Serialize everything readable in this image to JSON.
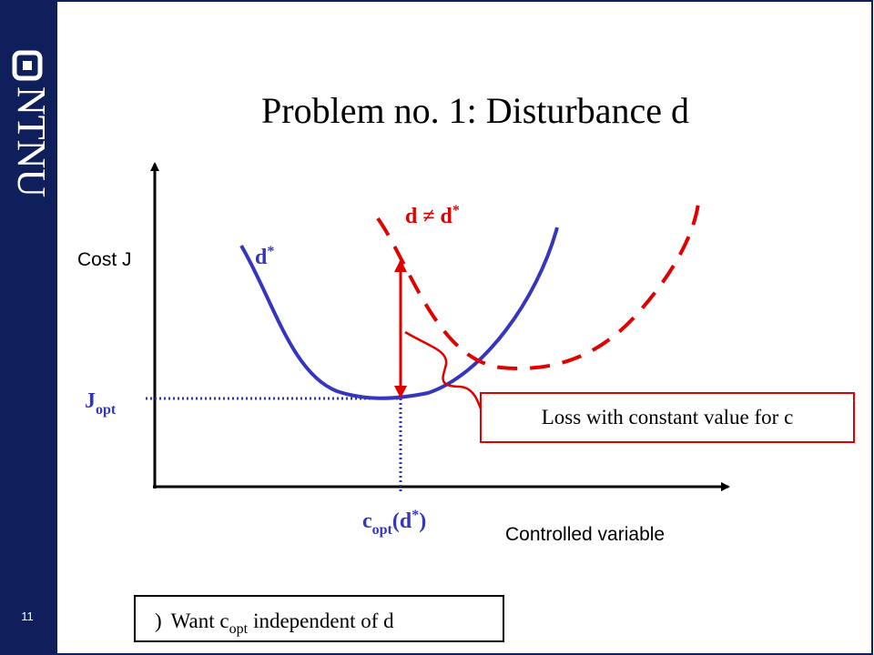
{
  "sidebar": {
    "logo": "NTNU",
    "page_number": "11"
  },
  "title": "Problem no. 1: Disturbance d",
  "axes": {
    "y_label": "Cost J",
    "x_label": "Controlled variable"
  },
  "curves": [
    {
      "label": {
        "base": "d",
        "sup": "*"
      }
    },
    {
      "label": {
        "base": "d ≠ d",
        "sup": "*"
      }
    }
  ],
  "j_opt": {
    "base": "J",
    "sub": "opt"
  },
  "c_opt": {
    "base": "c",
    "sub": "opt",
    "middle": "(d",
    "sup": "*",
    "end": ")"
  },
  "loss_box": "Loss with constant value for c",
  "conclusion": {
    "prefix": ")",
    "text1": "Want c",
    "sub": "opt",
    "text2": "independent of d"
  }
}
